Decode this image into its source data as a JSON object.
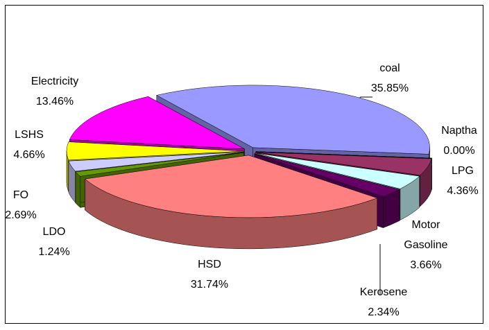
{
  "chart_data": {
    "type": "pie3d",
    "categories": [
      "coal",
      "Naptha",
      "LPG",
      "Motor Gasoline",
      "Kerosene",
      "HSD",
      "LDO",
      "FO",
      "LSHS",
      "Electricity"
    ],
    "values": [
      35.85,
      0.0,
      4.36,
      3.66,
      2.34,
      31.74,
      1.24,
      2.69,
      4.66,
      13.46
    ],
    "value_labels": [
      "35.85%",
      "0.00%",
      "4.36%",
      "3.66%",
      "2.34%",
      "31.74%",
      "1.24%",
      "2.69%",
      "4.66%",
      "13.46%"
    ],
    "colors": [
      "#9999ff",
      "#993366",
      "#993366",
      "#ccffff",
      "#660066",
      "#ff8080",
      "#669900",
      "#ccccff",
      "#ffff00",
      "#ff00ff"
    ]
  }
}
